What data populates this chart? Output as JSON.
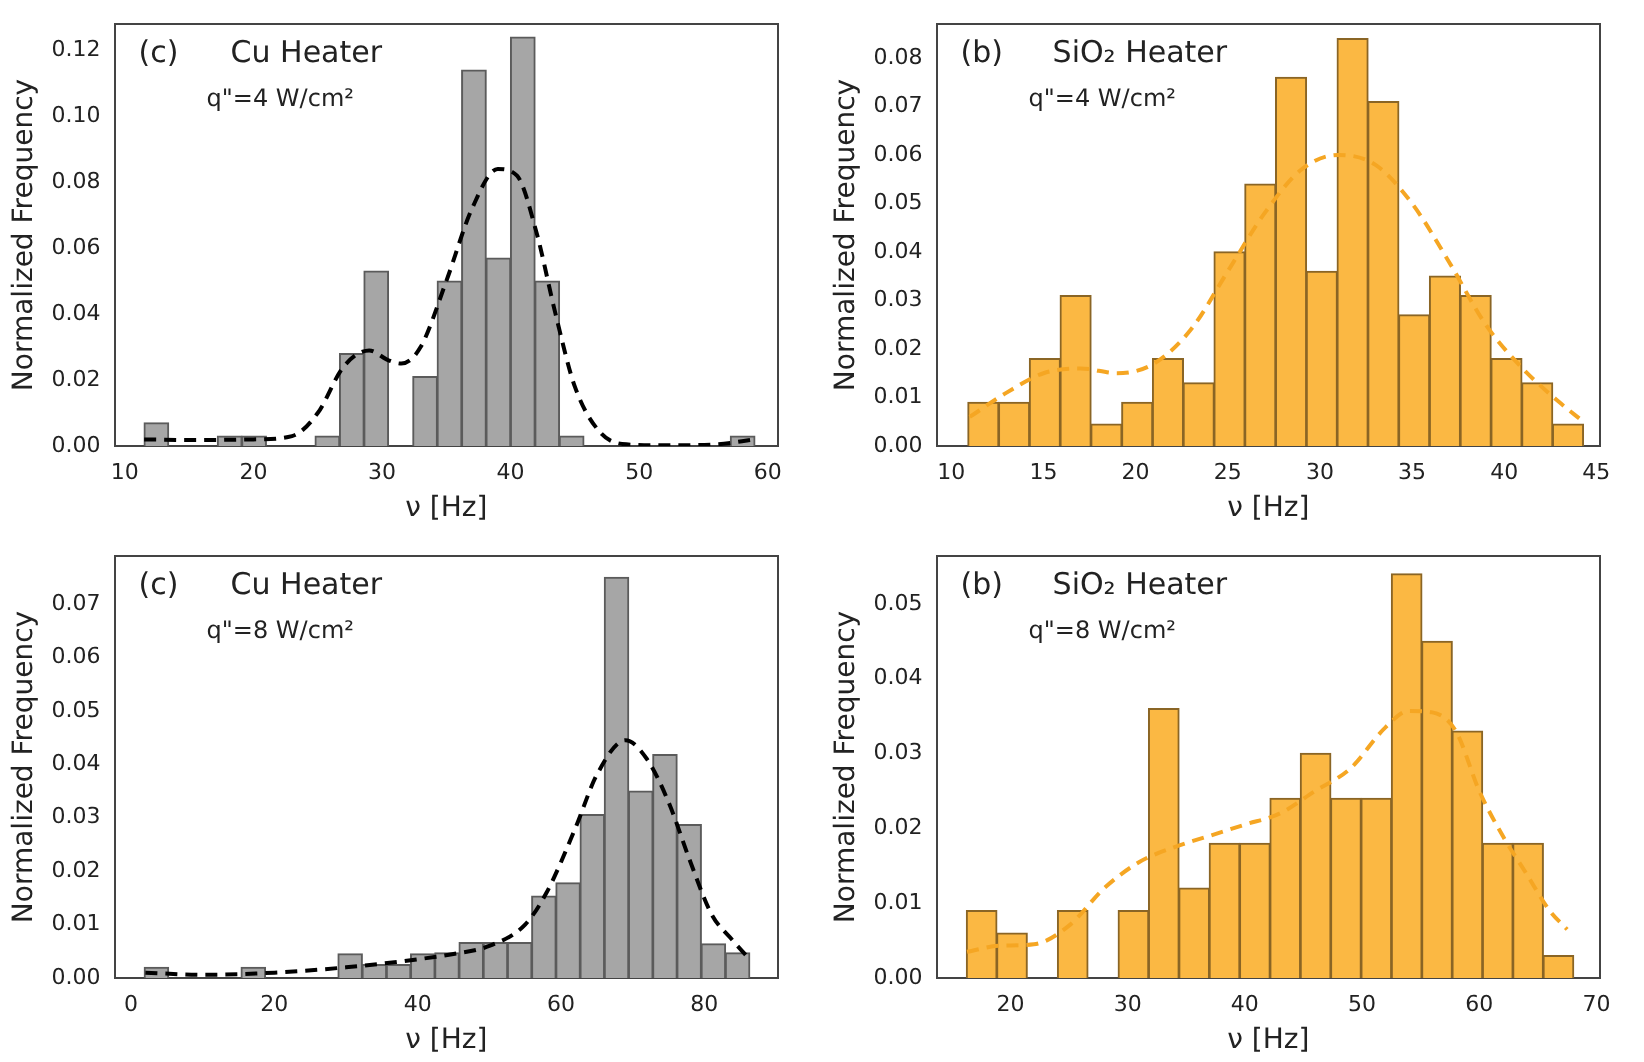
{
  "chart_data": [
    {
      "type": "histogram",
      "xlabel": "ν [Hz]",
      "ylabel": "Normalized Frequency",
      "annotations": [
        "(c)",
        "Cu Heater",
        "q\"=4 W/cm²"
      ],
      "bins": [
        11.5,
        13.4,
        15.3,
        17.2,
        19.1,
        21.0,
        22.9,
        24.8,
        26.7,
        28.6,
        30.5,
        32.4,
        34.3,
        36.2,
        38.1,
        40.0,
        41.9,
        43.8,
        45.7,
        47.6,
        49.5,
        51.4,
        53.3,
        55.2,
        57.1,
        59.0
      ],
      "series": [
        {
          "color": "#a6a6a6",
          "values": [
            0.007,
            0,
            0,
            0.003,
            0.003,
            0,
            0,
            0.003,
            0.028,
            0.053,
            0,
            0.021,
            0.05,
            0.114,
            0.057,
            0.124,
            0.05,
            0.003,
            0,
            0,
            0,
            0,
            0,
            0,
            0.003
          ]
        },
        {
          "type": "line",
          "color": "#000000",
          "line_style": "dashed",
          "x": [
            11.5,
            15,
            20,
            23,
            25,
            27,
            29,
            30.5,
            31.5,
            33,
            35,
            37,
            39,
            40.5,
            42,
            43.5,
            45,
            47,
            49,
            52,
            56,
            59
          ],
          "values": [
            0.002,
            0.0018,
            0.002,
            0.003,
            0.01,
            0.024,
            0.029,
            0.026,
            0.025,
            0.03,
            0.05,
            0.072,
            0.084,
            0.082,
            0.065,
            0.04,
            0.018,
            0.004,
            0.0005,
            0.0002,
            0.0005,
            0.002
          ]
        }
      ],
      "xlim": [
        9.2,
        60.8
      ],
      "xticks": [
        10,
        20,
        30,
        40,
        50,
        60
      ],
      "ylim": [
        0,
        0.128
      ],
      "yticks": [
        {
          "value": 0,
          "label": "0.00"
        },
        {
          "value": 0.02,
          "label": "0.02"
        },
        {
          "value": 0.04,
          "label": "0.04"
        },
        {
          "value": 0.06,
          "label": "0.06"
        },
        {
          "value": 0.08,
          "label": "0.08"
        },
        {
          "value": 0.1,
          "label": "0.10"
        },
        {
          "value": 0.12,
          "label": "0.12"
        }
      ],
      "marker": "none"
    },
    {
      "type": "histogram",
      "xlabel": "ν [Hz]",
      "ylabel": "Normalized Frequency",
      "annotations": [
        "(b)",
        "SiO₂ Heater",
        "q\"=4 W/cm²"
      ],
      "bins": [
        10.9,
        12.57,
        14.24,
        15.91,
        17.58,
        19.25,
        20.92,
        22.59,
        24.26,
        25.93,
        27.6,
        29.27,
        30.94,
        32.61,
        34.28,
        35.95,
        37.62,
        39.29,
        40.96,
        42.63,
        44.3
      ],
      "series": [
        {
          "color": "#fbb843",
          "values": [
            0.009,
            0.009,
            0.018,
            0.031,
            0.0045,
            0.009,
            0.018,
            0.013,
            0.04,
            0.054,
            0.076,
            0.036,
            0.084,
            0.071,
            0.027,
            0.035,
            0.031,
            0.018,
            0.013,
            0.0045
          ]
        },
        {
          "type": "line",
          "color": "#f5a623",
          "line_style": "dashed",
          "x": [
            11,
            13,
            15,
            17,
            19,
            21,
            23,
            25,
            27,
            29,
            31,
            33,
            35,
            37,
            39,
            41,
            43,
            44.3
          ],
          "values": [
            0.006,
            0.011,
            0.015,
            0.016,
            0.015,
            0.017,
            0.024,
            0.036,
            0.048,
            0.057,
            0.06,
            0.058,
            0.05,
            0.038,
            0.025,
            0.016,
            0.009,
            0.005
          ]
        }
      ],
      "xlim": [
        9.2,
        45.2
      ],
      "xticks": [
        10,
        15,
        20,
        25,
        30,
        35,
        40,
        45
      ],
      "ylim": [
        0,
        0.087
      ],
      "yticks": [
        {
          "value": 0,
          "label": "0.00"
        },
        {
          "value": 0.01,
          "label": "0.01"
        },
        {
          "value": 0.02,
          "label": "0.02"
        },
        {
          "value": 0.03,
          "label": "0.03"
        },
        {
          "value": 0.04,
          "label": "0.04"
        },
        {
          "value": 0.05,
          "label": "0.05"
        },
        {
          "value": 0.06,
          "label": "0.06"
        },
        {
          "value": 0.07,
          "label": "0.07"
        },
        {
          "value": 0.08,
          "label": "0.08"
        }
      ],
      "marker": "none"
    },
    {
      "type": "histogram",
      "xlabel": "ν [Hz]",
      "ylabel": "Normalized Frequency",
      "annotations": [
        "(c)",
        "Cu Heater",
        "q\"=8 W/cm²"
      ],
      "bins": [
        1.85,
        5.23,
        8.61,
        11.99,
        15.37,
        18.75,
        22.13,
        25.51,
        28.89,
        32.27,
        35.65,
        39.03,
        42.41,
        45.79,
        49.17,
        52.55,
        55.93,
        59.31,
        62.69,
        66.07,
        69.45,
        72.83,
        76.21,
        79.59,
        82.97,
        86.35
      ],
      "series": [
        {
          "color": "#a6a6a6",
          "values": [
            0.002,
            0,
            0,
            0,
            0.002,
            0,
            0,
            0,
            0.0045,
            0.0025,
            0.0025,
            0.0045,
            0.0047,
            0.0066,
            0.0066,
            0.0066,
            0.0153,
            0.0178,
            0.0306,
            0.075,
            0.035,
            0.0418,
            0.0287,
            0.0064,
            0.0047
          ]
        },
        {
          "type": "line",
          "color": "#000000",
          "line_style": "dashed",
          "x": [
            2,
            10,
            20,
            30,
            40,
            45,
            50,
            55,
            58,
            62,
            65,
            69,
            72,
            75,
            78,
            81,
            84,
            86
          ],
          "values": [
            0.001,
            0.0006,
            0.001,
            0.002,
            0.0035,
            0.0045,
            0.006,
            0.01,
            0.016,
            0.028,
            0.038,
            0.0445,
            0.041,
            0.033,
            0.022,
            0.012,
            0.007,
            0.004
          ]
        }
      ],
      "xlim": [
        -2.3,
        90.3
      ],
      "xticks": [
        0,
        20,
        40,
        60,
        80
      ],
      "ylim": [
        0,
        0.079
      ],
      "yticks": [
        {
          "value": 0,
          "label": "0.00"
        },
        {
          "value": 0.01,
          "label": "0.01"
        },
        {
          "value": 0.02,
          "label": "0.02"
        },
        {
          "value": 0.03,
          "label": "0.03"
        },
        {
          "value": 0.04,
          "label": "0.04"
        },
        {
          "value": 0.05,
          "label": "0.05"
        },
        {
          "value": 0.06,
          "label": "0.06"
        },
        {
          "value": 0.07,
          "label": "0.07"
        }
      ],
      "marker": "none"
    },
    {
      "type": "histogram",
      "xlabel": "ν [Hz]",
      "ylabel": "Normalized Frequency",
      "annotations": [
        "(b)",
        "SiO₂ Heater",
        "q\"=8 W/cm²"
      ],
      "bins": [
        16.25,
        18.84,
        21.43,
        24.02,
        26.61,
        29.2,
        31.79,
        34.38,
        36.97,
        39.56,
        42.15,
        44.74,
        47.33,
        49.92,
        52.51,
        55.1,
        57.69,
        60.28,
        62.87,
        65.46,
        68.05
      ],
      "series": [
        {
          "color": "#fbb843",
          "values": [
            0.009,
            0.006,
            0,
            0.009,
            0,
            0.009,
            0.036,
            0.012,
            0.018,
            0.018,
            0.024,
            0.03,
            0.024,
            0.024,
            0.054,
            0.045,
            0.033,
            0.018,
            0.018,
            0.003
          ]
        },
        {
          "type": "line",
          "color": "#f5a623",
          "line_style": "dashed",
          "x": [
            16.3,
            19,
            22,
            25,
            28,
            31,
            34,
            37,
            40,
            43,
            46,
            49,
            52,
            54,
            56,
            58,
            60,
            62,
            64,
            66,
            67.5
          ],
          "values": [
            0.0035,
            0.0043,
            0.0045,
            0.007,
            0.012,
            0.0155,
            0.0175,
            0.019,
            0.0205,
            0.022,
            0.025,
            0.028,
            0.0335,
            0.0357,
            0.0355,
            0.033,
            0.025,
            0.019,
            0.014,
            0.009,
            0.0065
          ]
        }
      ],
      "xlim": [
        13.7,
        70.3
      ],
      "xticks": [
        20,
        30,
        40,
        50,
        60,
        70
      ],
      "ylim": [
        0,
        0.0564
      ],
      "yticks": [
        {
          "value": 0,
          "label": "0.00"
        },
        {
          "value": 0.01,
          "label": "0.01"
        },
        {
          "value": 0.02,
          "label": "0.02"
        },
        {
          "value": 0.03,
          "label": "0.03"
        },
        {
          "value": 0.04,
          "label": "0.04"
        },
        {
          "value": 0.05,
          "label": "0.05"
        }
      ],
      "marker": "none"
    }
  ]
}
